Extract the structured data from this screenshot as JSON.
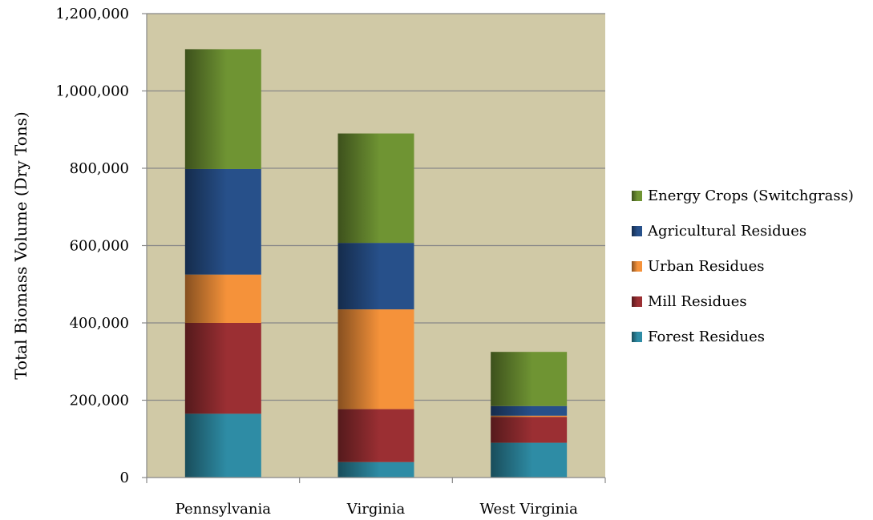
{
  "chart_data": {
    "type": "bar",
    "stacked": true,
    "categories": [
      "Pennsylvania",
      "Virginia",
      "West Virginia"
    ],
    "series": [
      {
        "name": "Forest Residues",
        "values": [
          165000,
          40000,
          90000
        ],
        "color": "#2e8ca5"
      },
      {
        "name": "Mill Residues",
        "values": [
          235000,
          137000,
          67000
        ],
        "color": "#9b2f33"
      },
      {
        "name": "Urban Residues",
        "values": [
          125000,
          258000,
          3000
        ],
        "color": "#f5923a"
      },
      {
        "name": "Agricultural Residues",
        "values": [
          273000,
          172000,
          25000
        ],
        "color": "#27508a"
      },
      {
        "name": "Energy Crops (Switchgrass)",
        "values": [
          310000,
          283000,
          140000
        ],
        "color": "#6f9433"
      }
    ],
    "legend_order": [
      "Energy Crops (Switchgrass)",
      "Agricultural Residues",
      "Urban Residues",
      "Mill Residues",
      "Forest Residues"
    ],
    "y_ticks": [
      "0",
      "200,000",
      "400,000",
      "600,000",
      "800,000",
      "1,000,000",
      "1,200,000"
    ],
    "ylabel": "Total Biomass Volume (Dry Tons)",
    "xlabel": "",
    "title": "",
    "ylim": [
      0,
      1200000
    ],
    "y_tick_step": 200000,
    "grid": true,
    "legend_position": "right",
    "plot_background": "#d0c9a6",
    "grid_color": "#888888"
  }
}
